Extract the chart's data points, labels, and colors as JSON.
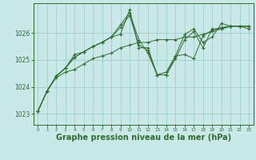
{
  "background_color": "#cbe8e8",
  "grid_color": "#9dcfcf",
  "line_color": "#2d6e2d",
  "marker_color": "#2d6e2d",
  "xlabel": "Graphe pression niveau de la mer (hPa)",
  "xlabel_fontsize": 7,
  "yticks": [
    1023,
    1024,
    1025,
    1026
  ],
  "xticks": [
    0,
    1,
    2,
    3,
    4,
    5,
    6,
    7,
    8,
    9,
    10,
    11,
    12,
    13,
    14,
    15,
    16,
    17,
    18,
    19,
    20,
    21,
    22,
    23
  ],
  "ylim": [
    1022.6,
    1027.1
  ],
  "xlim": [
    -0.5,
    23.5
  ],
  "series": [
    [
      1023.1,
      1023.85,
      1024.35,
      1024.55,
      1024.65,
      1024.85,
      1025.05,
      1025.15,
      1025.25,
      1025.45,
      1025.55,
      1025.65,
      1025.65,
      1025.75,
      1025.75,
      1025.75,
      1025.85,
      1025.85,
      1025.95,
      1026.05,
      1026.15,
      1026.25,
      1026.25,
      1026.25
    ],
    [
      1023.1,
      1023.85,
      1024.4,
      1024.7,
      1025.1,
      1025.3,
      1025.5,
      1025.65,
      1025.85,
      1026.3,
      1026.75,
      1025.75,
      1025.25,
      1024.45,
      1024.45,
      1025.15,
      1025.2,
      1025.05,
      1025.9,
      1026.1,
      1026.2,
      1026.25,
      1026.25,
      1026.15
    ],
    [
      1023.1,
      1023.85,
      1024.4,
      1024.7,
      1025.2,
      1025.3,
      1025.5,
      1025.65,
      1025.85,
      1025.95,
      1026.85,
      1025.45,
      1025.45,
      1024.45,
      1024.55,
      1025.15,
      1025.95,
      1026.15,
      1025.65,
      1025.85,
      1026.35,
      1026.25,
      1026.25,
      1026.25
    ],
    [
      1023.1,
      1023.85,
      1024.4,
      1024.7,
      1025.1,
      1025.3,
      1025.5,
      1025.65,
      1025.85,
      1026.2,
      1026.65,
      1025.55,
      1025.35,
      1024.45,
      1024.45,
      1025.05,
      1025.75,
      1026.05,
      1025.45,
      1026.15,
      1026.15,
      1026.25,
      1026.25,
      1026.25
    ]
  ]
}
